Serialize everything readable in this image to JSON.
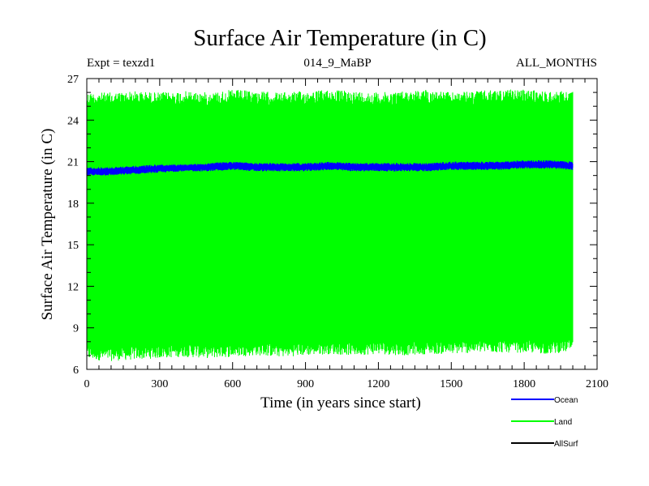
{
  "chart_data": {
    "type": "line",
    "title": "Surface Air Temperature (in C)",
    "subtitle_left": "Expt = texzd1",
    "subtitle_center": "014_9_MaBP",
    "subtitle_right": "ALL_MONTHS",
    "xlabel": "Time (in years since start)",
    "ylabel": "Surface Air Temperature (in C)",
    "xlim": [
      0,
      2100
    ],
    "ylim": [
      6,
      27
    ],
    "x_ticks": [
      0,
      300,
      600,
      900,
      1200,
      1500,
      1800,
      2100
    ],
    "y_ticks": [
      6,
      9,
      12,
      15,
      18,
      21,
      24,
      27
    ],
    "x_tick_labels": [
      "0",
      "300",
      "600",
      "900",
      "1200",
      "1500",
      "1800",
      "2100"
    ],
    "y_tick_labels": [
      "6",
      "9",
      "12",
      "15",
      "18",
      "21",
      "24",
      "27"
    ],
    "x_range_of_data": [
      0,
      2000
    ],
    "series": [
      {
        "name": "Land",
        "color": "#00ff00",
        "style": "dense oscillation (monthly values)",
        "x": [
          0,
          100,
          200,
          300,
          400,
          500,
          600,
          700,
          800,
          900,
          1000,
          1100,
          1200,
          1300,
          1400,
          1500,
          1600,
          1700,
          1800,
          1900,
          2000
        ],
        "y_max": [
          26.0,
          26.0,
          26.1,
          26.0,
          26.1,
          26.0,
          26.2,
          26.1,
          26.0,
          26.1,
          26.2,
          26.1,
          26.0,
          26.1,
          26.2,
          26.0,
          26.1,
          26.2,
          26.2,
          26.1,
          26.1
        ],
        "y_min": [
          6.7,
          6.6,
          6.7,
          6.8,
          6.9,
          6.8,
          6.9,
          7.0,
          6.9,
          7.0,
          7.1,
          7.0,
          7.1,
          7.0,
          7.1,
          7.1,
          7.2,
          7.2,
          7.2,
          7.1,
          7.3
        ]
      },
      {
        "name": "Ocean",
        "color": "#0000ff",
        "style": "dense oscillation (monthly values)",
        "x": [
          0,
          100,
          200,
          300,
          400,
          500,
          600,
          700,
          800,
          900,
          1000,
          1100,
          1200,
          1300,
          1400,
          1500,
          1600,
          1700,
          1800,
          1900,
          2000
        ],
        "y_max": [
          20.6,
          20.6,
          20.7,
          20.8,
          20.8,
          20.9,
          21.0,
          20.9,
          20.9,
          20.9,
          21.0,
          20.9,
          20.9,
          20.9,
          20.9,
          21.0,
          21.0,
          21.0,
          21.1,
          21.1,
          21.0
        ],
        "y_min": [
          20.0,
          20.0,
          20.1,
          20.2,
          20.3,
          20.3,
          20.4,
          20.3,
          20.3,
          20.3,
          20.4,
          20.3,
          20.3,
          20.3,
          20.3,
          20.4,
          20.4,
          20.4,
          20.5,
          20.5,
          20.4
        ]
      },
      {
        "name": "AllSurf",
        "color": "#000000",
        "style": "line",
        "x": [],
        "y": []
      }
    ],
    "legend": [
      "Ocean",
      "Land",
      "AllSurf"
    ],
    "legend_position": "below-right"
  }
}
